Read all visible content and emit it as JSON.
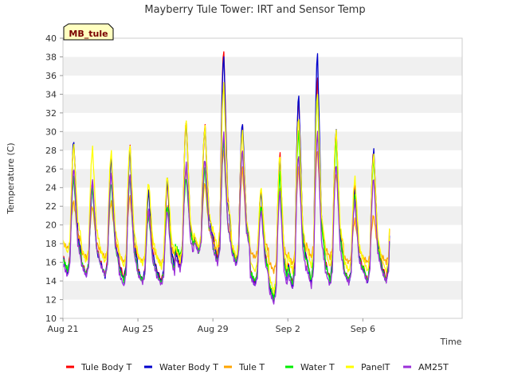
{
  "chart_data": {
    "type": "line",
    "title": "Mayberry Tule Tower: IRT and Sensor Temp",
    "xlabel": "Time",
    "ylabel": "Temperature (C)",
    "tag": "MB_tule",
    "ylim": [
      10,
      40
    ],
    "yticks": [
      10,
      12,
      14,
      16,
      18,
      20,
      22,
      24,
      26,
      28,
      30,
      32,
      34,
      36,
      38,
      40
    ],
    "xlim": [
      0,
      21.3
    ],
    "xticks": [
      {
        "label": "Aug 21",
        "day": 0
      },
      {
        "label": "Aug 25",
        "day": 4
      },
      {
        "label": "Aug 29",
        "day": 8
      },
      {
        "label": "Sep 2",
        "day": 12
      },
      {
        "label": "Sep 6",
        "day": 16
      }
    ],
    "grid": "horizontal alternating bands",
    "legend_position": "bottom",
    "days": [
      "Aug 21",
      "Aug 22",
      "Aug 23",
      "Aug 24",
      "Aug 25",
      "Aug 26",
      "Aug 27",
      "Aug 28",
      "Aug 29",
      "Aug 30",
      "Aug 31",
      "Sep 1",
      "Sep 2",
      "Sep 3",
      "Sep 4",
      "Sep 5",
      "Sep 6",
      "Sep 7"
    ],
    "series": [
      {
        "name": "Tule Body T",
        "color": "#ff0000",
        "daily_min": [
          15.0,
          14.8,
          14.6,
          14.3,
          14.0,
          14.0,
          15.5,
          17.2,
          16.2,
          16.0,
          13.8,
          12.0,
          13.6,
          13.8,
          14.2,
          14.0,
          14.0,
          14.2
        ],
        "daily_max": [
          28.8,
          24.5,
          27.3,
          28.3,
          24.0,
          24.5,
          31.3,
          30.5,
          38.8,
          30.5,
          23.8,
          27.5,
          33.5,
          35.5,
          30.0,
          24.0,
          28.0,
          27.5
        ]
      },
      {
        "name": "Water Body T",
        "color": "#0000cc",
        "daily_min": [
          14.8,
          14.6,
          14.5,
          14.0,
          14.0,
          13.8,
          15.3,
          17.0,
          16.0,
          15.8,
          13.6,
          11.8,
          13.4,
          13.6,
          14.0,
          13.8,
          13.8,
          14.0
        ],
        "daily_max": [
          29.0,
          24.0,
          27.0,
          28.0,
          23.5,
          24.8,
          31.0,
          30.5,
          38.2,
          31.0,
          23.5,
          27.0,
          33.8,
          38.2,
          30.0,
          23.5,
          28.0,
          27.0
        ]
      },
      {
        "name": "Tule T",
        "color": "#ffa500",
        "daily_min": [
          17.5,
          16.5,
          16.5,
          16.0,
          16.0,
          15.8,
          16.5,
          17.5,
          17.0,
          16.5,
          16.5,
          15.0,
          15.8,
          16.5,
          16.5,
          16.0,
          16.0,
          16.0
        ],
        "daily_max": [
          22.5,
          22.0,
          22.5,
          23.0,
          21.5,
          22.0,
          26.0,
          24.5,
          28.0,
          26.0,
          22.0,
          24.0,
          26.0,
          28.0,
          25.5,
          20.5,
          21.0,
          22.0
        ]
      },
      {
        "name": "Water T",
        "color": "#00ee00",
        "daily_min": [
          15.2,
          14.8,
          14.6,
          14.0,
          14.0,
          13.8,
          16.8,
          17.2,
          16.0,
          16.0,
          14.0,
          12.2,
          13.6,
          14.0,
          14.0,
          14.0,
          14.0,
          14.0
        ],
        "daily_max": [
          25.0,
          24.0,
          24.5,
          25.0,
          21.0,
          22.0,
          25.0,
          26.0,
          29.0,
          28.0,
          22.0,
          25.5,
          30.0,
          34.0,
          29.0,
          23.0,
          27.0,
          25.0
        ]
      },
      {
        "name": "PanelT",
        "color": "#ffff00",
        "daily_min": [
          17.0,
          16.0,
          16.0,
          15.5,
          15.8,
          15.5,
          16.0,
          17.5,
          17.5,
          16.5,
          15.0,
          12.8,
          15.0,
          15.5,
          15.5,
          15.0,
          15.0,
          15.0
        ],
        "daily_max": [
          28.5,
          28.2,
          27.8,
          28.5,
          24.5,
          25.2,
          31.2,
          30.5,
          35.0,
          30.0,
          24.0,
          27.5,
          31.5,
          34.0,
          30.0,
          25.0,
          27.5,
          27.0
        ]
      },
      {
        "name": "AM25T",
        "color": "#9b30d9",
        "daily_min": [
          14.5,
          14.5,
          14.5,
          13.4,
          13.8,
          13.6,
          15.2,
          17.0,
          15.8,
          15.6,
          13.5,
          11.6,
          13.1,
          13.4,
          13.5,
          13.8,
          13.8,
          13.9
        ],
        "daily_max": [
          26.0,
          24.8,
          25.5,
          25.5,
          21.5,
          21.5,
          26.5,
          27.0,
          29.8,
          28.0,
          21.5,
          23.5,
          27.5,
          29.8,
          26.5,
          22.5,
          25.0,
          24.5
        ]
      }
    ]
  }
}
